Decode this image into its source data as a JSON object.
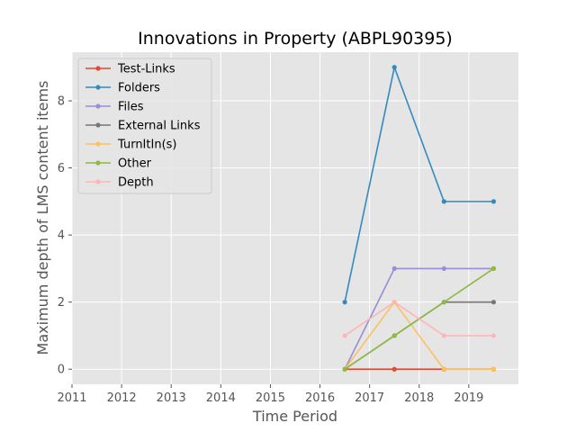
{
  "chart_data": {
    "type": "line",
    "title": "Innovations in Property (ABPL90395)",
    "xlabel": "Time Period",
    "ylabel": "Maximum depth of LMS content items",
    "xlim": [
      2011,
      2020
    ],
    "ylim": [
      -0.45,
      9.45
    ],
    "xticks": [
      2011,
      2012,
      2013,
      2014,
      2015,
      2016,
      2017,
      2018,
      2019
    ],
    "yticks": [
      0,
      2,
      4,
      6,
      8
    ],
    "grid": true,
    "legend_position": "upper-left",
    "x": [
      2016.5,
      2017.5,
      2018.5,
      2019.5
    ],
    "series": [
      {
        "name": "Test-Links",
        "color": "#E24A33",
        "values": [
          0,
          0,
          0,
          0
        ]
      },
      {
        "name": "Folders",
        "color": "#348ABD",
        "values": [
          2,
          9,
          5,
          5
        ]
      },
      {
        "name": "Files",
        "color": "#988ED5",
        "values": [
          0,
          3,
          3,
          3
        ]
      },
      {
        "name": "External Links",
        "color": "#777777",
        "values": [
          0,
          1,
          2,
          2
        ]
      },
      {
        "name": "TurnItIn(s)",
        "color": "#FBC15E",
        "values": [
          0,
          2,
          0,
          0
        ]
      },
      {
        "name": "Other",
        "color": "#8EBA42",
        "values": [
          0,
          1,
          2,
          3
        ]
      },
      {
        "name": "Depth",
        "color": "#FFB5B8",
        "values": [
          1,
          2,
          1,
          1
        ]
      }
    ]
  }
}
